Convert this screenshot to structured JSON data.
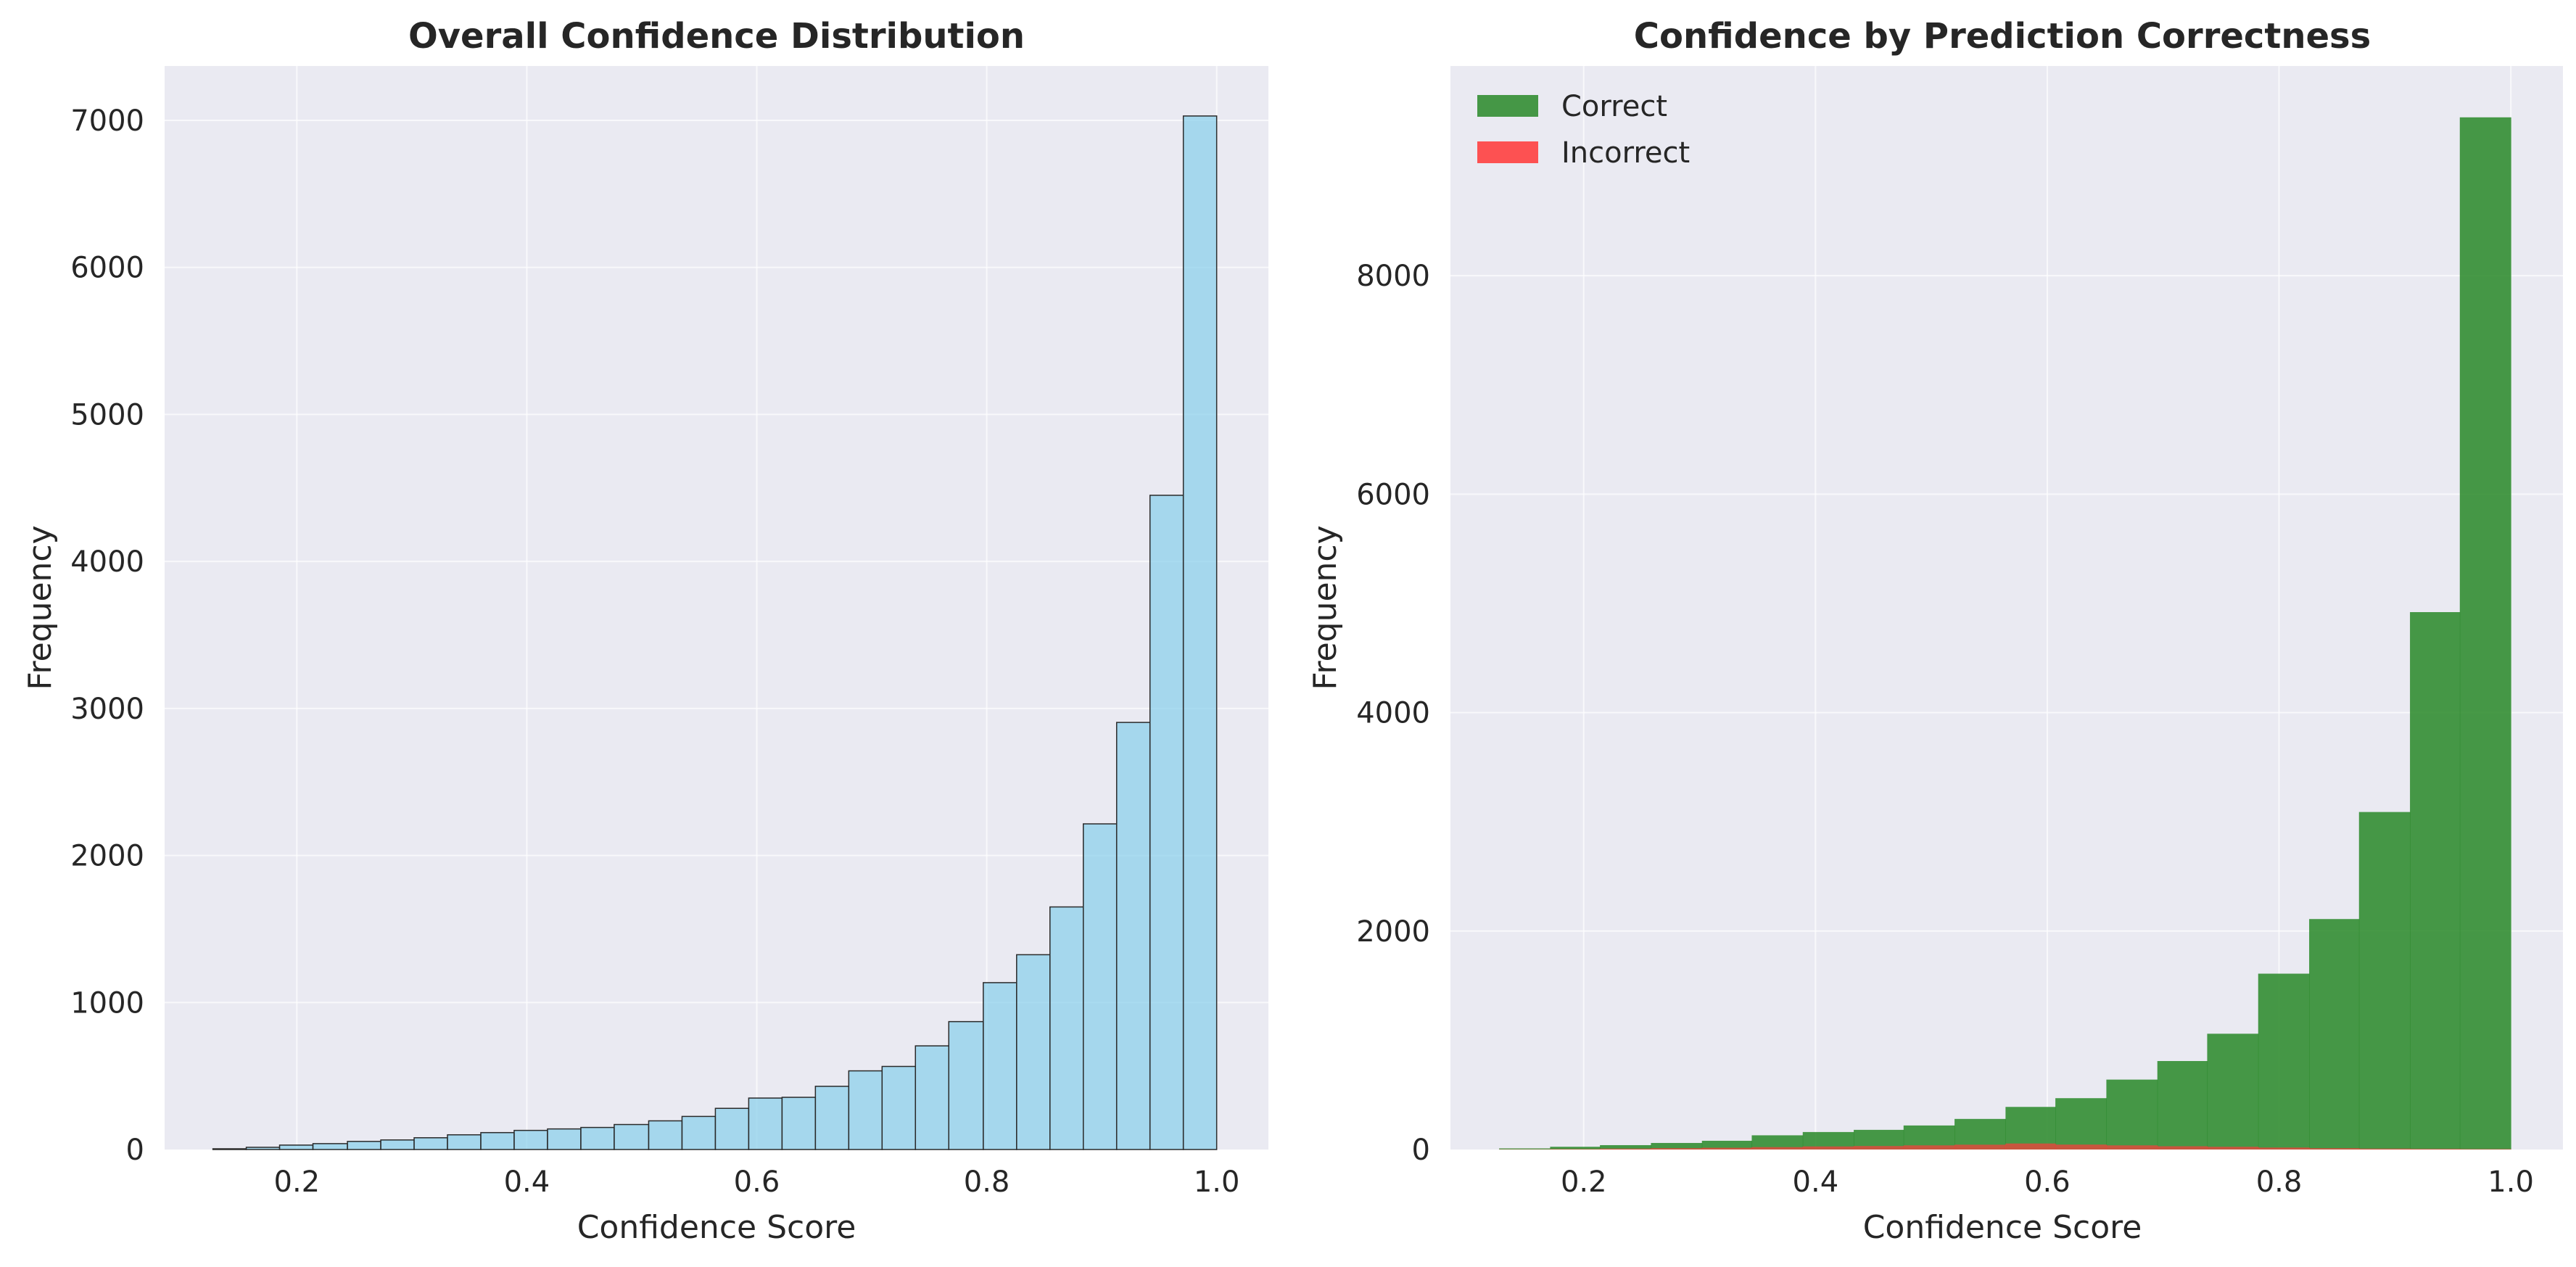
{
  "chart_data": [
    {
      "type": "bar",
      "title": "Overall Confidence Distribution",
      "xlabel": "Confidence Score",
      "ylabel": "Frequency",
      "xlim": [
        0.085,
        1.045
      ],
      "ylim": [
        0,
        7370
      ],
      "xticks": [
        "0.2",
        "0.4",
        "0.6",
        "0.8",
        "1.0"
      ],
      "yticks": [
        "0",
        "1000",
        "2000",
        "3000",
        "4000",
        "5000",
        "6000",
        "7000"
      ],
      "grid": true,
      "bins": [
        [
          0.127,
          0.156
        ],
        [
          0.156,
          0.185
        ],
        [
          0.185,
          0.214
        ],
        [
          0.214,
          0.244
        ],
        [
          0.244,
          0.273
        ],
        [
          0.273,
          0.302
        ],
        [
          0.302,
          0.331
        ],
        [
          0.331,
          0.36
        ],
        [
          0.36,
          0.389
        ],
        [
          0.389,
          0.418
        ],
        [
          0.418,
          0.447
        ],
        [
          0.447,
          0.476
        ],
        [
          0.476,
          0.506
        ],
        [
          0.506,
          0.535
        ],
        [
          0.535,
          0.564
        ],
        [
          0.564,
          0.593
        ],
        [
          0.593,
          0.622
        ],
        [
          0.622,
          0.651
        ],
        [
          0.651,
          0.68
        ],
        [
          0.68,
          0.709
        ],
        [
          0.709,
          0.738
        ],
        [
          0.738,
          0.767
        ],
        [
          0.767,
          0.797
        ],
        [
          0.797,
          0.826
        ],
        [
          0.826,
          0.855
        ],
        [
          0.855,
          0.884
        ],
        [
          0.884,
          0.913
        ],
        [
          0.913,
          0.942
        ],
        [
          0.942,
          0.971
        ],
        [
          0.971,
          1.0
        ]
      ],
      "values": [
        5,
        15,
        30,
        40,
        55,
        65,
        80,
        100,
        115,
        130,
        140,
        150,
        170,
        195,
        225,
        280,
        350,
        355,
        430,
        535,
        565,
        705,
        870,
        1135,
        1325,
        1650,
        2215,
        2905,
        4450,
        7030
      ],
      "colors": {
        "fill": "#87ceeb",
        "edge": "#2a2a2a"
      }
    },
    {
      "type": "bar",
      "title": "Confidence by Prediction Correctness",
      "xlabel": "Confidence Score",
      "ylabel": "Frequency",
      "xlim": [
        0.085,
        1.045
      ],
      "ylim": [
        0,
        9920
      ],
      "xticks": [
        "0.2",
        "0.4",
        "0.6",
        "0.8",
        "1.0"
      ],
      "yticks": [
        "0",
        "2000",
        "4000",
        "6000",
        "8000"
      ],
      "grid": true,
      "legend_position": "top-left",
      "bins": [
        [
          0.127,
          0.171
        ],
        [
          0.171,
          0.214
        ],
        [
          0.214,
          0.258
        ],
        [
          0.258,
          0.302
        ],
        [
          0.302,
          0.345
        ],
        [
          0.345,
          0.389
        ],
        [
          0.389,
          0.433
        ],
        [
          0.433,
          0.476
        ],
        [
          0.476,
          0.52
        ],
        [
          0.52,
          0.564
        ],
        [
          0.564,
          0.607
        ],
        [
          0.607,
          0.651
        ],
        [
          0.651,
          0.695
        ],
        [
          0.695,
          0.738
        ],
        [
          0.738,
          0.782
        ],
        [
          0.782,
          0.826
        ],
        [
          0.826,
          0.869
        ],
        [
          0.869,
          0.913
        ],
        [
          0.913,
          0.956
        ],
        [
          0.956,
          1.0
        ]
      ],
      "series": [
        {
          "name": "Correct",
          "color": "#2e8b2e",
          "values": [
            10,
            25,
            40,
            60,
            80,
            130,
            160,
            180,
            220,
            280,
            390,
            470,
            640,
            810,
            1060,
            1610,
            2110,
            3090,
            4920,
            9450
          ]
        },
        {
          "name": "Incorrect",
          "color": "#ff3b3b",
          "values": [
            2,
            4,
            8,
            12,
            16,
            22,
            28,
            32,
            38,
            44,
            55,
            45,
            38,
            30,
            25,
            18,
            12,
            8,
            6,
            4
          ]
        }
      ]
    }
  ]
}
